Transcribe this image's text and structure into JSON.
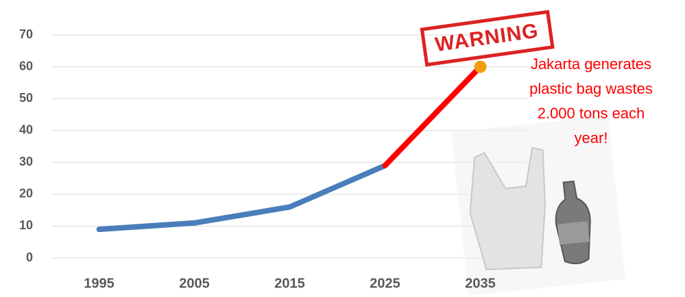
{
  "chart_data": {
    "type": "line",
    "categories": [
      "1995",
      "2005",
      "2015",
      "2025",
      "2035"
    ],
    "values": [
      9,
      11,
      16,
      29,
      60
    ],
    "segment_colors": [
      "#4a7ebb",
      "#4a7ebb",
      "#4a7ebb",
      "#ff0000"
    ],
    "end_marker_color": "#f39c12",
    "ylim": [
      0,
      70
    ],
    "yticks": [
      0,
      10,
      20,
      30,
      40,
      50,
      60,
      70
    ],
    "grid": true,
    "stamp": "WARNING",
    "annotation": [
      "Jakarta generates",
      "plastic bag wastes",
      "2.000 tons each",
      "year!"
    ]
  }
}
